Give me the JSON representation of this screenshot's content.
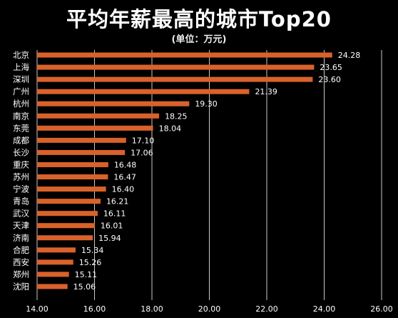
{
  "chart_data": {
    "type": "bar",
    "orientation": "horizontal",
    "title": "平均年薪最高的城市Top20",
    "subtitle": "(单位：万元)",
    "categories": [
      "北京",
      "上海",
      "深圳",
      "广州",
      "杭州",
      "南京",
      "东莞",
      "成都",
      "长沙",
      "重庆",
      "苏州",
      "宁波",
      "青岛",
      "武汉",
      "天津",
      "济南",
      "合肥",
      "西安",
      "郑州",
      "沈阳"
    ],
    "values": [
      24.28,
      23.65,
      23.6,
      21.39,
      19.3,
      18.25,
      18.04,
      17.1,
      17.06,
      16.48,
      16.47,
      16.4,
      16.21,
      16.11,
      16.01,
      15.94,
      15.34,
      15.26,
      15.11,
      15.06
    ],
    "value_labels": [
      "24.28",
      "23.65",
      "23.60",
      "21.39",
      "19.30",
      "18.25",
      "18.04",
      "17.10",
      "17.06",
      "16.48",
      "16.47",
      "16.40",
      "16.21",
      "16.11",
      "16.01",
      "15.94",
      "15.34",
      "15.26",
      "15.11",
      "15.06"
    ],
    "xlim": [
      14,
      26
    ],
    "xticks": [
      14,
      16,
      18,
      20,
      22,
      24,
      26
    ],
    "xtick_labels": [
      "14.00",
      "16.00",
      "18.00",
      "20.00",
      "22.00",
      "24.00",
      "26.00"
    ],
    "grid": "vertical",
    "bar_color": "#D9622B",
    "background_color": "#000000"
  }
}
